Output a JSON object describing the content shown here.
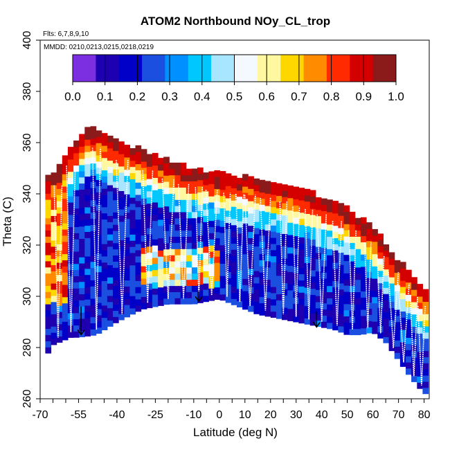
{
  "chart_data": {
    "type": "heatmap",
    "title": "ATOM2 Northbound NOy_CL_trop",
    "annotations": {
      "flights": "Flts: 6,7,8,9,10",
      "dates": "MMDD: 0210,0213,0215,0218,0219"
    },
    "xlabel": "Latitude (deg N)",
    "ylabel": "Theta (C)",
    "xlim": [
      -70,
      82
    ],
    "ylim": [
      260,
      400
    ],
    "x_tick_labels": [
      "-70",
      "-55",
      "-40",
      "-25",
      "-10",
      "0",
      "10",
      "20",
      "30",
      "40",
      "50",
      "60",
      "70",
      "80"
    ],
    "y_tick_labels": [
      "260",
      "280",
      "300",
      "320",
      "340",
      "360",
      "380",
      "400"
    ],
    "colorbar": {
      "position": "top",
      "range": [
        0.0,
        1.0
      ],
      "tick_labels": [
        "0.0",
        "0.1",
        "0.2",
        "0.3",
        "0.4",
        "0.5",
        "0.6",
        "0.7",
        "0.8",
        "0.9",
        "1.0"
      ],
      "colors": [
        "#7b2fe0",
        "#1f00b0",
        "#0000c8",
        "#1a4fe0",
        "#0090ff",
        "#00c8ff",
        "#a8e6ff",
        "#f4f8ff",
        "#fff8a0",
        "#ffd700",
        "#ff8c00",
        "#ff2a00",
        "#d40000",
        "#8b1a1a"
      ]
    },
    "boundary": {
      "top_lat": [
        -67,
        -65,
        -62,
        -58,
        -55,
        -52,
        -48,
        -44,
        -40,
        -35,
        -30,
        -25,
        -20,
        -15,
        -10,
        -5,
        0,
        5,
        10,
        15,
        20,
        25,
        30,
        35,
        40,
        45,
        50,
        55,
        60,
        63,
        66,
        70,
        73,
        76,
        80
      ],
      "top_theta": [
        346,
        348,
        350,
        357,
        361,
        365,
        364,
        362,
        360,
        358,
        356,
        354,
        352,
        350,
        349,
        348,
        347,
        346,
        346,
        345,
        344,
        343,
        341,
        340,
        338,
        336,
        333,
        330,
        325,
        322,
        318,
        313,
        310,
        306,
        301
      ],
      "bottom_lat": [
        -68,
        -65,
        -58,
        -55,
        -48,
        -40,
        -30,
        -25,
        -20,
        -15,
        -10,
        -5,
        0,
        5,
        10,
        15,
        20,
        25,
        30,
        35,
        40,
        45,
        50,
        55,
        60,
        65,
        70,
        75,
        80
      ],
      "bottom_theta": [
        276,
        281,
        284,
        284,
        285,
        290,
        295,
        296,
        297,
        297,
        297,
        298,
        299,
        297,
        295,
        293,
        292,
        291,
        290,
        289,
        288,
        287,
        285,
        285,
        286,
        282,
        275,
        268,
        262
      ]
    },
    "profiles_lat": [
      -63,
      -58,
      -48,
      -38,
      -28,
      -20,
      -14,
      -8,
      -3,
      3,
      8,
      12,
      18,
      25,
      30,
      35,
      40,
      46,
      52,
      58,
      63,
      68,
      72,
      76,
      79
    ],
    "arrows": [
      {
        "lat": -54,
        "theta_top": 296,
        "theta_bottom": 285
      },
      {
        "lat": -8,
        "theta_top": 302,
        "theta_bottom": 298
      },
      {
        "lat": 38,
        "theta_top": 294,
        "theta_bottom": 288
      }
    ]
  }
}
